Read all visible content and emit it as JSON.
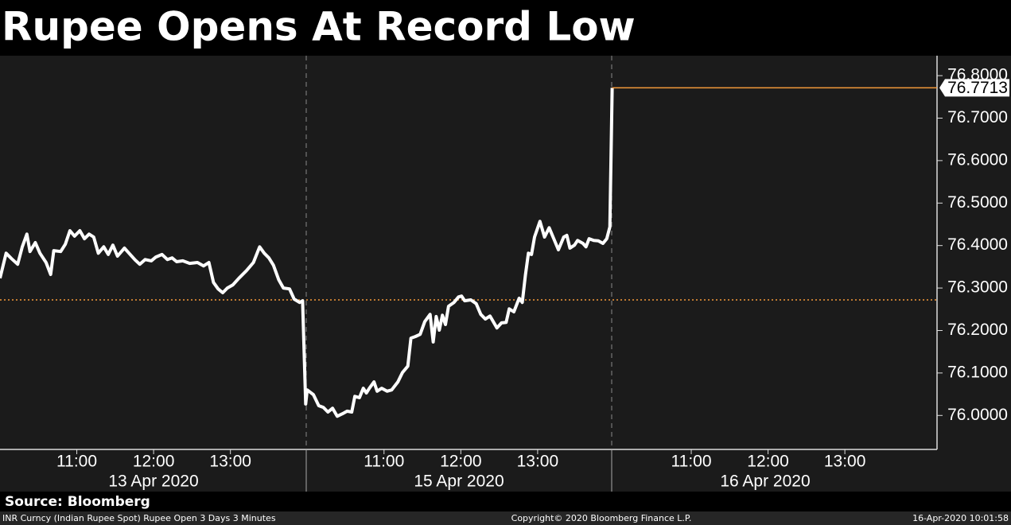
{
  "chart_data": {
    "type": "line",
    "title": "Rupee Opens At Record Low",
    "color": "#ffffff",
    "x": [
      0,
      0.08,
      0.15,
      0.23,
      0.29,
      0.35,
      0.39,
      0.46,
      0.52,
      0.6,
      0.66,
      0.7,
      0.79,
      0.85,
      0.91,
      0.97,
      1.04,
      1.1,
      1.16,
      1.22,
      1.28,
      1.35,
      1.41,
      1.47,
      1.53,
      1.62,
      1.68,
      1.76,
      1.82,
      1.89,
      1.97,
      2.03,
      2.11,
      2.18,
      2.24,
      2.3,
      2.38,
      2.47,
      2.57,
      2.65,
      2.72,
      2.78,
      2.84,
      2.9,
      2.96,
      3.03,
      3.11,
      3.21,
      3.3,
      3.38,
      3.44,
      3.5,
      3.56,
      3.63,
      3.69,
      3.77,
      3.83,
      3.9,
      3.94,
      3.98,
      4,
      4.08,
      4.15,
      4.21,
      4.27,
      4.33,
      4.39,
      4.46,
      4.52,
      4.58,
      4.62,
      4.68,
      4.73,
      4.77,
      4.81,
      4.87,
      4.91,
      4.97,
      5.04,
      5.1,
      5.18,
      5.24,
      5.31,
      5.35,
      5.41,
      5.47,
      5.53,
      5.6,
      5.64,
      5.68,
      5.72,
      5.76,
      5.8,
      5.84,
      5.91,
      5.97,
      6.01,
      6.05,
      6.13,
      6.2,
      6.26,
      6.32,
      6.38,
      6.47,
      6.53,
      6.59,
      6.63,
      6.69,
      6.76,
      6.8,
      6.84,
      6.88,
      6.92,
      6.96,
      7.03,
      7.09,
      7.15,
      7.21,
      7.27,
      7.34,
      7.38,
      7.42,
      7.48,
      7.52,
      7.59,
      7.63,
      7.67,
      7.73,
      7.79,
      7.85,
      7.9,
      7.94,
      7.97
    ],
    "values": [
      76.323,
      76.382,
      76.369,
      76.356,
      76.397,
      76.427,
      76.386,
      76.407,
      76.382,
      76.36,
      76.332,
      76.388,
      76.386,
      76.403,
      76.435,
      76.422,
      76.435,
      76.416,
      76.427,
      76.42,
      76.382,
      76.397,
      76.379,
      76.401,
      76.375,
      76.394,
      76.382,
      76.366,
      76.356,
      76.367,
      76.364,
      76.373,
      76.379,
      76.367,
      76.371,
      76.362,
      76.364,
      76.358,
      76.36,
      76.352,
      76.36,
      76.313,
      76.298,
      76.289,
      76.3,
      76.307,
      76.323,
      76.341,
      76.36,
      76.397,
      76.382,
      76.371,
      76.354,
      76.319,
      76.3,
      76.298,
      76.274,
      76.266,
      76.27,
      76.027,
      76.06,
      76.049,
      76.023,
      76.019,
      76.008,
      76.017,
      75.998,
      76.004,
      76.01,
      76.008,
      76.045,
      76.042,
      76.064,
      76.053,
      76.064,
      76.079,
      76.057,
      76.064,
      76.057,
      76.06,
      76.079,
      76.101,
      76.116,
      76.182,
      76.186,
      76.191,
      76.221,
      76.238,
      76.173,
      76.233,
      76.201,
      76.236,
      76.214,
      76.257,
      76.266,
      76.279,
      76.281,
      76.27,
      76.272,
      76.263,
      76.238,
      76.227,
      76.234,
      76.206,
      76.218,
      76.219,
      76.251,
      76.244,
      76.276,
      76.266,
      76.33,
      76.382,
      76.379,
      76.42,
      76.457,
      76.42,
      76.442,
      76.416,
      76.39,
      76.42,
      76.424,
      76.394,
      76.401,
      76.412,
      76.405,
      76.397,
      76.416,
      76.412,
      76.411,
      76.405,
      76.416,
      76.444,
      76.7713
    ],
    "xlim": [
      0,
      12.2
    ],
    "ylim": [
      75.92,
      76.847
    ],
    "yticks": [
      {
        "value": 76.0,
        "label": "76.0000"
      },
      {
        "value": 76.1,
        "label": "76.1000"
      },
      {
        "value": 76.2,
        "label": "76.2000"
      },
      {
        "value": 76.3,
        "label": "76.3000"
      },
      {
        "value": 76.4,
        "label": "76.4000"
      },
      {
        "value": 76.5,
        "label": "76.5000"
      },
      {
        "value": 76.6,
        "label": "76.6000"
      },
      {
        "value": 76.7,
        "label": "76.7000"
      },
      {
        "value": 76.8,
        "label": "76.8000"
      }
    ],
    "xticks": [
      {
        "value": 1,
        "label": "11:00"
      },
      {
        "value": 2,
        "label": "12:00"
      },
      {
        "value": 3,
        "label": "13:00"
      },
      {
        "value": 5,
        "label": "11:00"
      },
      {
        "value": 6,
        "label": "12:00"
      },
      {
        "value": 7,
        "label": "13:00"
      },
      {
        "value": 9,
        "label": "11:00"
      },
      {
        "value": 10,
        "label": "12:00"
      },
      {
        "value": 11,
        "label": "13:00"
      }
    ],
    "x_groups": [
      "13 Apr 2020",
      "15 Apr 2020",
      "16 Apr 2020"
    ],
    "reference_line": {
      "value": 76.272,
      "color": "#f59a3a"
    },
    "last_line_color": "#f59a3a",
    "source": "Source: Bloomberg",
    "footer": {
      "left": "INR Curncy (Indian Rupee Spot) Rupee Open 3 Days 3 Minutes",
      "center": "Copyright© 2020 Bloomberg Finance L.P.",
      "right": "16-Apr-2020 10:01:58"
    }
  }
}
